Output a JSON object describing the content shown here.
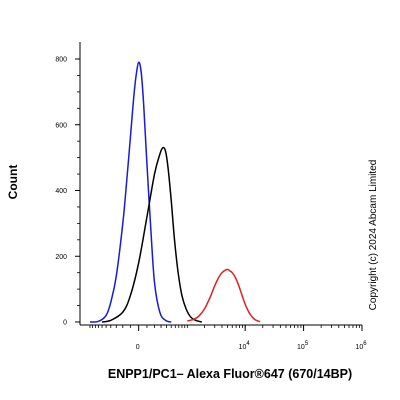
{
  "chart_data": {
    "type": "line",
    "title": "",
    "xlabel": "ENPP1/PC1– Alexa Fluor®647 (670/14BP)",
    "ylabel": "Count",
    "x_scale": "biexponential",
    "xlim": [
      -1500,
      1000000
    ],
    "ylim": [
      0,
      850
    ],
    "yticks": [
      0,
      200,
      400,
      600,
      800
    ],
    "xtick_labels": [
      {
        "base": "0",
        "exp": "",
        "value": 0
      },
      {
        "base": "10",
        "exp": "4",
        "value": 10000
      },
      {
        "base": "10",
        "exp": "5",
        "value": 100000
      },
      {
        "base": "10",
        "exp": "6",
        "value": 1000000
      }
    ],
    "grid": false,
    "legend": "none",
    "annotation": "Copyright (c) 2024  Abcam Limited",
    "series": [
      {
        "color": "#1a1adb",
        "x": [
          -1000,
          -700,
          -500,
          -400,
          -300,
          -200,
          -150,
          -100,
          -60,
          -30,
          0,
          30,
          60,
          100,
          150,
          200,
          280,
          380,
          500
        ],
        "y": [
          0,
          2,
          20,
          60,
          140,
          300,
          420,
          560,
          680,
          750,
          790,
          760,
          660,
          480,
          280,
          120,
          30,
          5,
          0
        ]
      },
      {
        "color": "#000000",
        "x": [
          -600,
          -400,
          -200,
          -100,
          0,
          100,
          200,
          280,
          330,
          380,
          430,
          500,
          580,
          680,
          800,
          950,
          1150,
          1400,
          1800
        ],
        "y": [
          0,
          5,
          30,
          80,
          180,
          320,
          450,
          510,
          530,
          520,
          470,
          370,
          250,
          150,
          80,
          40,
          15,
          5,
          0
        ]
      },
      {
        "color": "#dd2222",
        "x": [
          1000,
          1300,
          1600,
          2000,
          2500,
          3000,
          3500,
          4000,
          4500,
          5000,
          5500,
          6000,
          6800,
          7600,
          8500,
          9500,
          10500,
          12000,
          14000,
          16000,
          18000
        ],
        "y": [
          3,
          8,
          18,
          40,
          75,
          110,
          135,
          150,
          157,
          160,
          155,
          150,
          135,
          115,
          90,
          65,
          45,
          25,
          10,
          4,
          1
        ]
      }
    ]
  }
}
